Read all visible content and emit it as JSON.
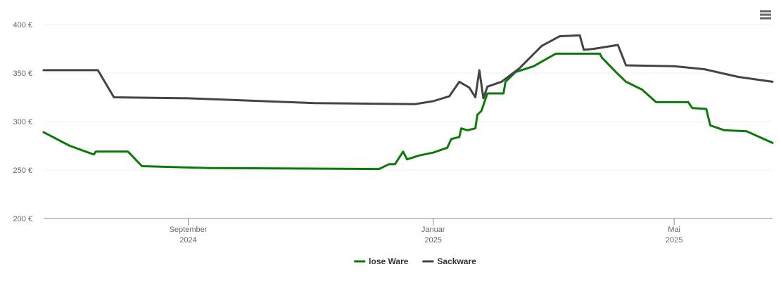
{
  "chart_data": {
    "type": "line",
    "xlim": [
      "2024-06-21",
      "2025-06-19"
    ],
    "xticks": [
      {
        "value": "2024-09-01",
        "label": [
          "September",
          "2024"
        ]
      },
      {
        "value": "2025-01-01",
        "label": [
          "Januar",
          "2025"
        ]
      },
      {
        "value": "2025-05-01",
        "label": [
          "Mai",
          "2025"
        ]
      }
    ],
    "ylim": [
      200,
      400
    ],
    "yticks": [
      {
        "value": 200,
        "label": "200 €"
      },
      {
        "value": 250,
        "label": "250 €"
      },
      {
        "value": 300,
        "label": "300 €"
      },
      {
        "value": 350,
        "label": "350 €"
      },
      {
        "value": 400,
        "label": "400 €"
      }
    ],
    "grid": true,
    "legend": "bottom",
    "series": [
      {
        "name": "lose Ware",
        "color": "#0b7a0b",
        "x": [
          "2024-06-21",
          "2024-07-04",
          "2024-07-16",
          "2024-07-17",
          "2024-08-02",
          "2024-08-09",
          "2024-09-12",
          "2024-12-05",
          "2024-12-10",
          "2024-12-13",
          "2024-12-17",
          "2024-12-19",
          "2024-12-25",
          "2025-01-01",
          "2025-01-08",
          "2025-01-10",
          "2025-01-14",
          "2025-01-15",
          "2025-01-18",
          "2025-01-22",
          "2025-01-23",
          "2025-01-25",
          "2025-01-28",
          "2025-02-05",
          "2025-02-06",
          "2025-02-11",
          "2025-02-20",
          "2025-03-03",
          "2025-03-25",
          "2025-03-26",
          "2025-04-02",
          "2025-04-07",
          "2025-04-15",
          "2025-04-22",
          "2025-05-08",
          "2025-05-10",
          "2025-05-17",
          "2025-05-19",
          "2025-05-26",
          "2025-06-06",
          "2025-06-19"
        ],
        "values": [
          289,
          275,
          266,
          269,
          269,
          254,
          252,
          251,
          256,
          256,
          269,
          261,
          265,
          268,
          273,
          282,
          284,
          293,
          291,
          293,
          307,
          311,
          329,
          329,
          341,
          351,
          357,
          370,
          370,
          366,
          351,
          341,
          333,
          320,
          320,
          314,
          313,
          296,
          291,
          290,
          278
        ]
      },
      {
        "name": "Sackware",
        "color": "#444444",
        "x": [
          "2024-06-21",
          "2024-07-18",
          "2024-07-26",
          "2024-09-01",
          "2024-11-03",
          "2024-12-23",
          "2025-01-01",
          "2025-01-09",
          "2025-01-14",
          "2025-01-19",
          "2025-01-22",
          "2025-01-24",
          "2025-01-26",
          "2025-01-28",
          "2025-02-04",
          "2025-02-13",
          "2025-02-24",
          "2025-03-05",
          "2025-03-15",
          "2025-03-17",
          "2025-03-22",
          "2025-04-03",
          "2025-04-07",
          "2025-05-01",
          "2025-05-16",
          "2025-06-02",
          "2025-06-19"
        ],
        "values": [
          353,
          353,
          325,
          324,
          319,
          318,
          321,
          326,
          341,
          335,
          325,
          353,
          324,
          336,
          341,
          355,
          378,
          388,
          389,
          374,
          375,
          379,
          358,
          357,
          354,
          346,
          341
        ]
      }
    ]
  }
}
